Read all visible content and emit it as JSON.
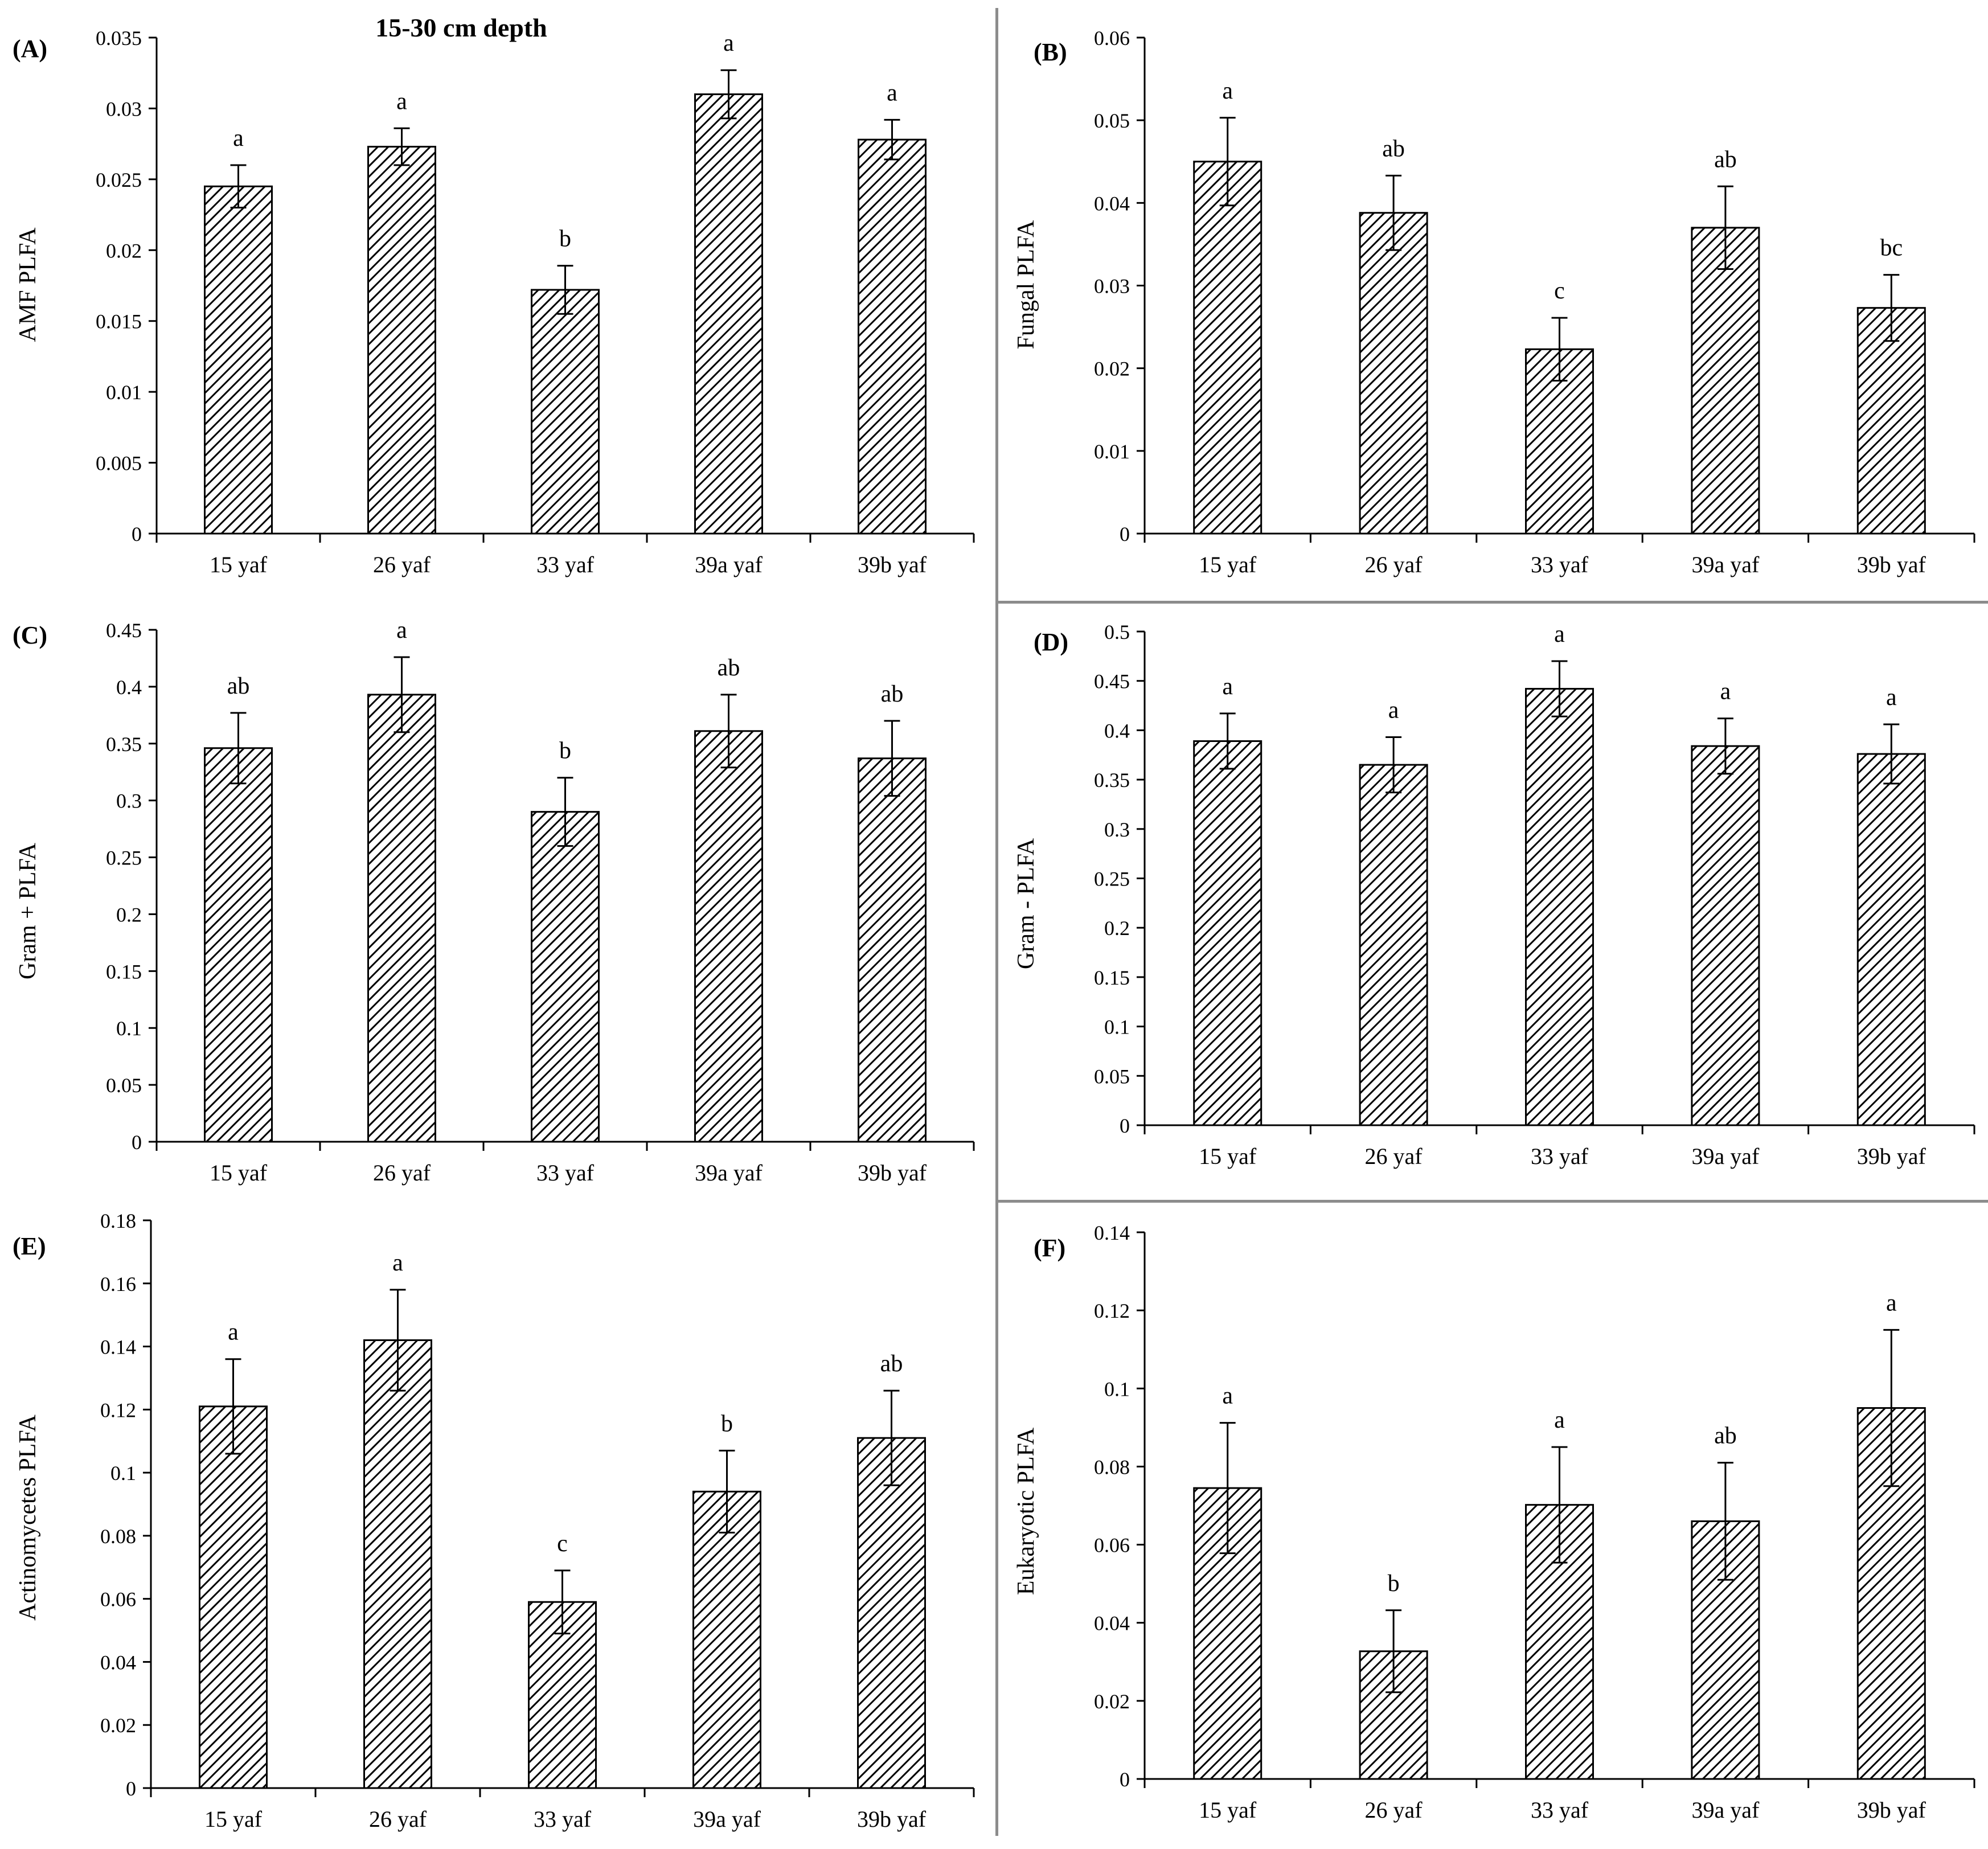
{
  "figure": {
    "title": "15-30 cm depth"
  },
  "colors": {
    "bar_hatch": "#000000",
    "bar_background": "#ffffff",
    "axis": "#000000",
    "divider": "#8c8c8c"
  },
  "chart_data": [
    {
      "type": "bar",
      "panel": "(A)",
      "ylabel": "AMF PLFA",
      "categories": [
        "15 yaf",
        "26 yaf",
        "33 yaf",
        "39a yaf",
        "39b yaf"
      ],
      "values": [
        0.0245,
        0.0273,
        0.0172,
        0.031,
        0.0278
      ],
      "errors": [
        0.0015,
        0.0013,
        0.0017,
        0.0017,
        0.0014
      ],
      "letters": [
        "a",
        "a",
        "b",
        "a",
        "a"
      ],
      "ylim": [
        0,
        0.035
      ],
      "yticks": [
        "0",
        "0.005",
        "0.01",
        "0.015",
        "0.02",
        "0.025",
        "0.03",
        "0.035"
      ],
      "title": "15-30 cm depth",
      "legend": "none"
    },
    {
      "type": "bar",
      "panel": "(B)",
      "ylabel": "Fungal PLFA",
      "categories": [
        "15 yaf",
        "26 yaf",
        "33 yaf",
        "39a yaf",
        "39b yaf"
      ],
      "values": [
        0.045,
        0.0388,
        0.0223,
        0.037,
        0.0273
      ],
      "errors": [
        0.0053,
        0.0045,
        0.0038,
        0.005,
        0.004
      ],
      "letters": [
        "a",
        "ab",
        "c",
        "ab",
        "bc"
      ],
      "ylim": [
        0,
        0.06
      ],
      "yticks": [
        "0",
        "0.01",
        "0.02",
        "0.03",
        "0.04",
        "0.05",
        "0.06"
      ],
      "legend": "none"
    },
    {
      "type": "bar",
      "panel": "(C)",
      "ylabel": "Gram + PLFA",
      "categories": [
        "15 yaf",
        "26 yaf",
        "33 yaf",
        "39a yaf",
        "39b yaf"
      ],
      "values": [
        0.346,
        0.393,
        0.29,
        0.361,
        0.337
      ],
      "errors": [
        0.031,
        0.033,
        0.03,
        0.032,
        0.033
      ],
      "letters": [
        "ab",
        "a",
        "b",
        "ab",
        "ab"
      ],
      "ylim": [
        0,
        0.45
      ],
      "yticks": [
        "0",
        "0.05",
        "0.1",
        "0.15",
        "0.2",
        "0.25",
        "0.3",
        "0.35",
        "0.4",
        "0.45"
      ],
      "legend": "none"
    },
    {
      "type": "bar",
      "panel": "(D)",
      "ylabel": "Gram - PLFA",
      "categories": [
        "15 yaf",
        "26 yaf",
        "33 yaf",
        "39a yaf",
        "39b yaf"
      ],
      "values": [
        0.389,
        0.365,
        0.442,
        0.384,
        0.376
      ],
      "errors": [
        0.028,
        0.028,
        0.028,
        0.028,
        0.03
      ],
      "letters": [
        "a",
        "a",
        "a",
        "a",
        "a"
      ],
      "ylim": [
        0,
        0.5
      ],
      "yticks": [
        "0",
        "0.05",
        "0.1",
        "0.15",
        "0.2",
        "0.25",
        "0.3",
        "0.35",
        "0.4",
        "0.45",
        "0.5"
      ],
      "legend": "none"
    },
    {
      "type": "bar",
      "panel": "(E)",
      "ylabel": "Actinomycetes PLFA",
      "categories": [
        "15 yaf",
        "26 yaf",
        "33 yaf",
        "39a yaf",
        "39b yaf"
      ],
      "values": [
        0.121,
        0.142,
        0.059,
        0.094,
        0.111
      ],
      "errors": [
        0.015,
        0.016,
        0.01,
        0.013,
        0.015
      ],
      "letters": [
        "a",
        "a",
        "c",
        "b",
        "ab"
      ],
      "ylim": [
        0,
        0.18
      ],
      "yticks": [
        "0",
        "0.02",
        "0.04",
        "0.06",
        "0.08",
        "0.1",
        "0.12",
        "0.14",
        "0.16",
        "0.18"
      ],
      "legend": "none"
    },
    {
      "type": "bar",
      "panel": "(F)",
      "ylabel": "Eukaryotic PLFA",
      "categories": [
        "15 yaf",
        "26 yaf",
        "33 yaf",
        "39a yaf",
        "39b yaf"
      ],
      "values": [
        0.0745,
        0.0327,
        0.0702,
        0.066,
        0.095
      ],
      "errors": [
        0.0167,
        0.0105,
        0.0148,
        0.015,
        0.02
      ],
      "letters": [
        "a",
        "b",
        "a",
        "ab",
        "a"
      ],
      "ylim": [
        0,
        0.14
      ],
      "yticks": [
        "0",
        "0.02",
        "0.04",
        "0.06",
        "0.08",
        "0.1",
        "0.12",
        "0.14"
      ],
      "legend": "none"
    }
  ]
}
